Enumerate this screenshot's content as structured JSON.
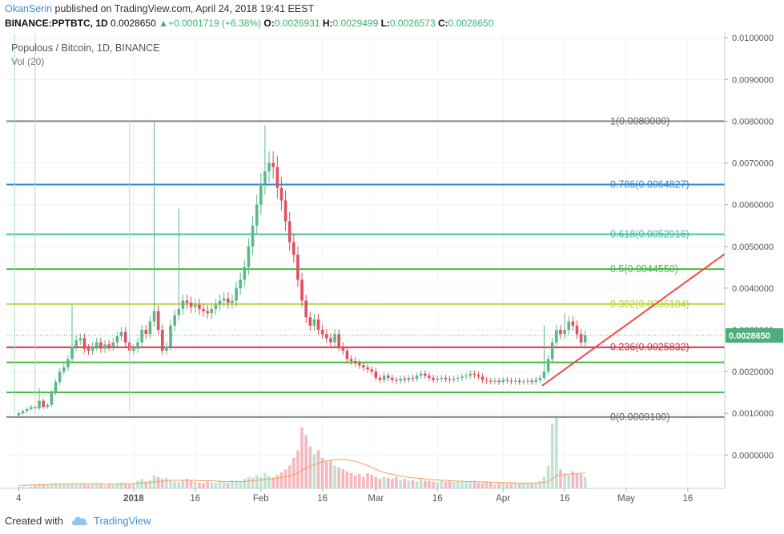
{
  "header": {
    "user": "OkanSerin",
    "published_text": "published on TradingView.com, April 24, 2018 19:41 EEST",
    "symbol": "BINANCE:PPTBTC, 1D",
    "last": "0.0028650",
    "change": "+0.0001719 (+6.38%)",
    "o_label": "O:",
    "o": "0.0026931",
    "h_label": "H:",
    "h": "0.0029499",
    "l_label": "L:",
    "l": "0.0026573",
    "c_label": "C:",
    "c": "0.0028650"
  },
  "legend": {
    "title": "Populous / Bitcoin, 1D, BINANCE",
    "volume": "Vol (20)"
  },
  "footer": {
    "created": "Created with",
    "brand": "TradingView"
  },
  "colors": {
    "up": "#5cb88a",
    "down": "#e0505e",
    "fib_1": "#888888",
    "fib_786": "#2f86d8",
    "fib_618": "#3dc0a0",
    "fib_5": "#44bb44",
    "fib_382": "#b5d33f",
    "fib_236": "#cc3344",
    "fib_0": "#888888",
    "trend": "#f04a4a",
    "price_tag": "#4cae7a"
  },
  "chart_data": {
    "type": "candlestick",
    "symbol": "PPTBTC",
    "exchange": "BINANCE",
    "interval": "1D",
    "ylim": [
      -0.0008,
      0.0101
    ],
    "y_ticks": [
      "0.0100000",
      "0.0090000",
      "0.0080000",
      "0.0070000",
      "0.0060000",
      "0.0050000",
      "0.0040000",
      "0.0030000",
      "0.0020000",
      "0.0010000",
      "0.0000000"
    ],
    "y_tick_values": [
      0.01,
      0.009,
      0.008,
      0.007,
      0.006,
      0.005,
      0.004,
      0.003,
      0.002,
      0.001,
      0.0
    ],
    "x_ticks": [
      {
        "label": "4",
        "day": 0
      },
      {
        "label": "2018",
        "day": 28
      },
      {
        "label": "16",
        "day": 43
      },
      {
        "label": "Feb",
        "day": 59
      },
      {
        "label": "16",
        "day": 74
      },
      {
        "label": "Mar",
        "day": 87
      },
      {
        "label": "16",
        "day": 102
      },
      {
        "label": "Apr",
        "day": 118
      },
      {
        "label": "16",
        "day": 133
      },
      {
        "label": "May",
        "day": 148
      },
      {
        "label": "16",
        "day": 163
      }
    ],
    "day_range": [
      -3,
      172
    ],
    "current_price_label": "0.0028650",
    "current_price": 0.002865,
    "fib_levels": [
      {
        "label": "1(0.0080000)",
        "value": 0.008,
        "color_key": "fib_1"
      },
      {
        "label": "0.786(0.0064827)",
        "value": 0.0064827,
        "color_key": "fib_786"
      },
      {
        "label": "0.618(0.0052916)",
        "value": 0.0052916,
        "color_key": "fib_618"
      },
      {
        "label": "0.5(0.0044550)",
        "value": 0.004455,
        "color_key": "fib_5"
      },
      {
        "label": "0.382(0.0036184)",
        "value": 0.0036184,
        "color_key": "fib_382"
      },
      {
        "label": "0.236(0.0025832)",
        "value": 0.0025832,
        "color_key": "fib_236"
      },
      {
        "label": "",
        "value": 0.00222,
        "color_key": "fib_5"
      },
      {
        "label": "",
        "value": 0.0015,
        "color_key": "fib_5"
      },
      {
        "label": "0(0.0009100)",
        "value": 0.00091,
        "color_key": "fib_0"
      }
    ],
    "trendline": [
      {
        "day": 127.5,
        "value": 0.00166
      },
      {
        "day": 172,
        "value": 0.00482
      }
    ],
    "closes": [
      0.001,
      0.00105,
      0.0011,
      0.00115,
      0.00112,
      0.0013,
      0.00115,
      0.0012,
      0.0015,
      0.00175,
      0.002,
      0.0021,
      0.0023,
      0.0026,
      0.00275,
      0.0028,
      0.00255,
      0.0025,
      0.0026,
      0.0027,
      0.00255,
      0.00265,
      0.0026,
      0.0027,
      0.00285,
      0.00295,
      0.0027,
      0.0025,
      0.00255,
      0.0027,
      0.003,
      0.0029,
      0.0032,
      0.00345,
      0.003,
      0.0025,
      0.0026,
      0.0031,
      0.00335,
      0.0035,
      0.0037,
      0.00365,
      0.00355,
      0.0036,
      0.0035,
      0.00345,
      0.0034,
      0.0035,
      0.0036,
      0.0037,
      0.00375,
      0.00365,
      0.0037,
      0.004,
      0.0042,
      0.0045,
      0.005,
      0.0055,
      0.006,
      0.0065,
      0.0068,
      0.007,
      0.0069,
      0.0064,
      0.0061,
      0.0056,
      0.0051,
      0.0048,
      0.0042,
      0.0037,
      0.0033,
      0.0031,
      0.00325,
      0.003,
      0.0029,
      0.0028,
      0.0027,
      0.0029,
      0.0026,
      0.0025,
      0.0023,
      0.00225,
      0.0022,
      0.00215,
      0.0021,
      0.00205,
      0.002,
      0.00185,
      0.0018,
      0.0019,
      0.00185,
      0.0018,
      0.00178,
      0.00183,
      0.0018,
      0.00185,
      0.00183,
      0.0019,
      0.00195,
      0.0019,
      0.00185,
      0.0018,
      0.00183,
      0.00185,
      0.00182,
      0.0018,
      0.00183,
      0.00185,
      0.00188,
      0.0019,
      0.00195,
      0.00192,
      0.00188,
      0.0018,
      0.00178,
      0.00176,
      0.00178,
      0.00175,
      0.0018,
      0.00178,
      0.00176,
      0.00178,
      0.00175,
      0.00176,
      0.00178,
      0.00175,
      0.0018,
      0.00185,
      0.002,
      0.0023,
      0.0027,
      0.003,
      0.0029,
      0.003,
      0.0032,
      0.0031,
      0.0029,
      0.0027,
      0.00287
    ],
    "volumes": [
      0.05,
      0.04,
      0.03,
      0.06,
      0.08,
      0.12,
      0.1,
      0.09,
      0.11,
      0.15,
      0.13,
      0.12,
      0.1,
      0.14,
      0.12,
      0.11,
      0.1,
      0.09,
      0.12,
      0.11,
      0.1,
      0.08,
      0.12,
      0.09,
      0.13,
      0.15,
      0.12,
      0.1,
      0.14,
      0.2,
      0.25,
      0.18,
      0.22,
      0.35,
      0.3,
      0.25,
      0.28,
      0.2,
      0.18,
      0.16,
      0.22,
      0.25,
      0.2,
      0.18,
      0.15,
      0.14,
      0.18,
      0.16,
      0.15,
      0.2,
      0.18,
      0.15,
      0.22,
      0.2,
      0.18,
      0.25,
      0.3,
      0.28,
      0.35,
      0.3,
      0.4,
      0.32,
      0.28,
      0.35,
      0.42,
      0.5,
      0.6,
      0.8,
      1.0,
      1.6,
      1.4,
      1.1,
      0.9,
      1.0,
      0.8,
      0.7,
      0.75,
      0.6,
      0.55,
      0.5,
      0.45,
      0.4,
      0.35,
      0.38,
      0.3,
      0.4,
      0.35,
      0.3,
      0.25,
      0.3,
      0.28,
      0.25,
      0.3,
      0.22,
      0.25,
      0.2,
      0.22,
      0.18,
      0.25,
      0.2,
      0.2,
      0.18,
      0.17,
      0.2,
      0.18,
      0.19,
      0.17,
      0.18,
      0.2,
      0.16,
      0.18,
      0.2,
      0.15,
      0.14,
      0.16,
      0.15,
      0.12,
      0.14,
      0.15,
      0.12,
      0.13,
      0.14,
      0.12,
      0.13,
      0.14,
      0.12,
      0.15,
      0.2,
      0.3,
      0.6,
      1.7,
      1.9,
      0.5,
      0.4,
      0.35,
      0.45,
      0.4,
      0.38,
      0.3
    ],
    "volume_ma": [
      0.08,
      0.08,
      0.08,
      0.09,
      0.09,
      0.1,
      0.1,
      0.1,
      0.11,
      0.11,
      0.11,
      0.11,
      0.11,
      0.12,
      0.12,
      0.12,
      0.12,
      0.12,
      0.12,
      0.12,
      0.12,
      0.11,
      0.11,
      0.11,
      0.11,
      0.12,
      0.12,
      0.12,
      0.12,
      0.13,
      0.14,
      0.15,
      0.16,
      0.17,
      0.18,
      0.19,
      0.2,
      0.21,
      0.21,
      0.21,
      0.21,
      0.21,
      0.21,
      0.21,
      0.2,
      0.2,
      0.2,
      0.2,
      0.19,
      0.19,
      0.18,
      0.18,
      0.18,
      0.18,
      0.18,
      0.18,
      0.19,
      0.2,
      0.21,
      0.22,
      0.24,
      0.25,
      0.26,
      0.27,
      0.29,
      0.31,
      0.33,
      0.36,
      0.4,
      0.47,
      0.53,
      0.58,
      0.62,
      0.66,
      0.7,
      0.72,
      0.74,
      0.75,
      0.76,
      0.76,
      0.75,
      0.73,
      0.71,
      0.68,
      0.64,
      0.6,
      0.55,
      0.5,
      0.45,
      0.42,
      0.39,
      0.37,
      0.35,
      0.33,
      0.31,
      0.29,
      0.28,
      0.27,
      0.26,
      0.25,
      0.24,
      0.23,
      0.22,
      0.21,
      0.21,
      0.2,
      0.2,
      0.19,
      0.19,
      0.18,
      0.18,
      0.18,
      0.17,
      0.17,
      0.17,
      0.16,
      0.16,
      0.16,
      0.15,
      0.15,
      0.15,
      0.14,
      0.14,
      0.14,
      0.14,
      0.14,
      0.14,
      0.15,
      0.16,
      0.18,
      0.25,
      0.33,
      0.35,
      0.36,
      0.37,
      0.38,
      0.39,
      0.4,
      0.4
    ]
  }
}
